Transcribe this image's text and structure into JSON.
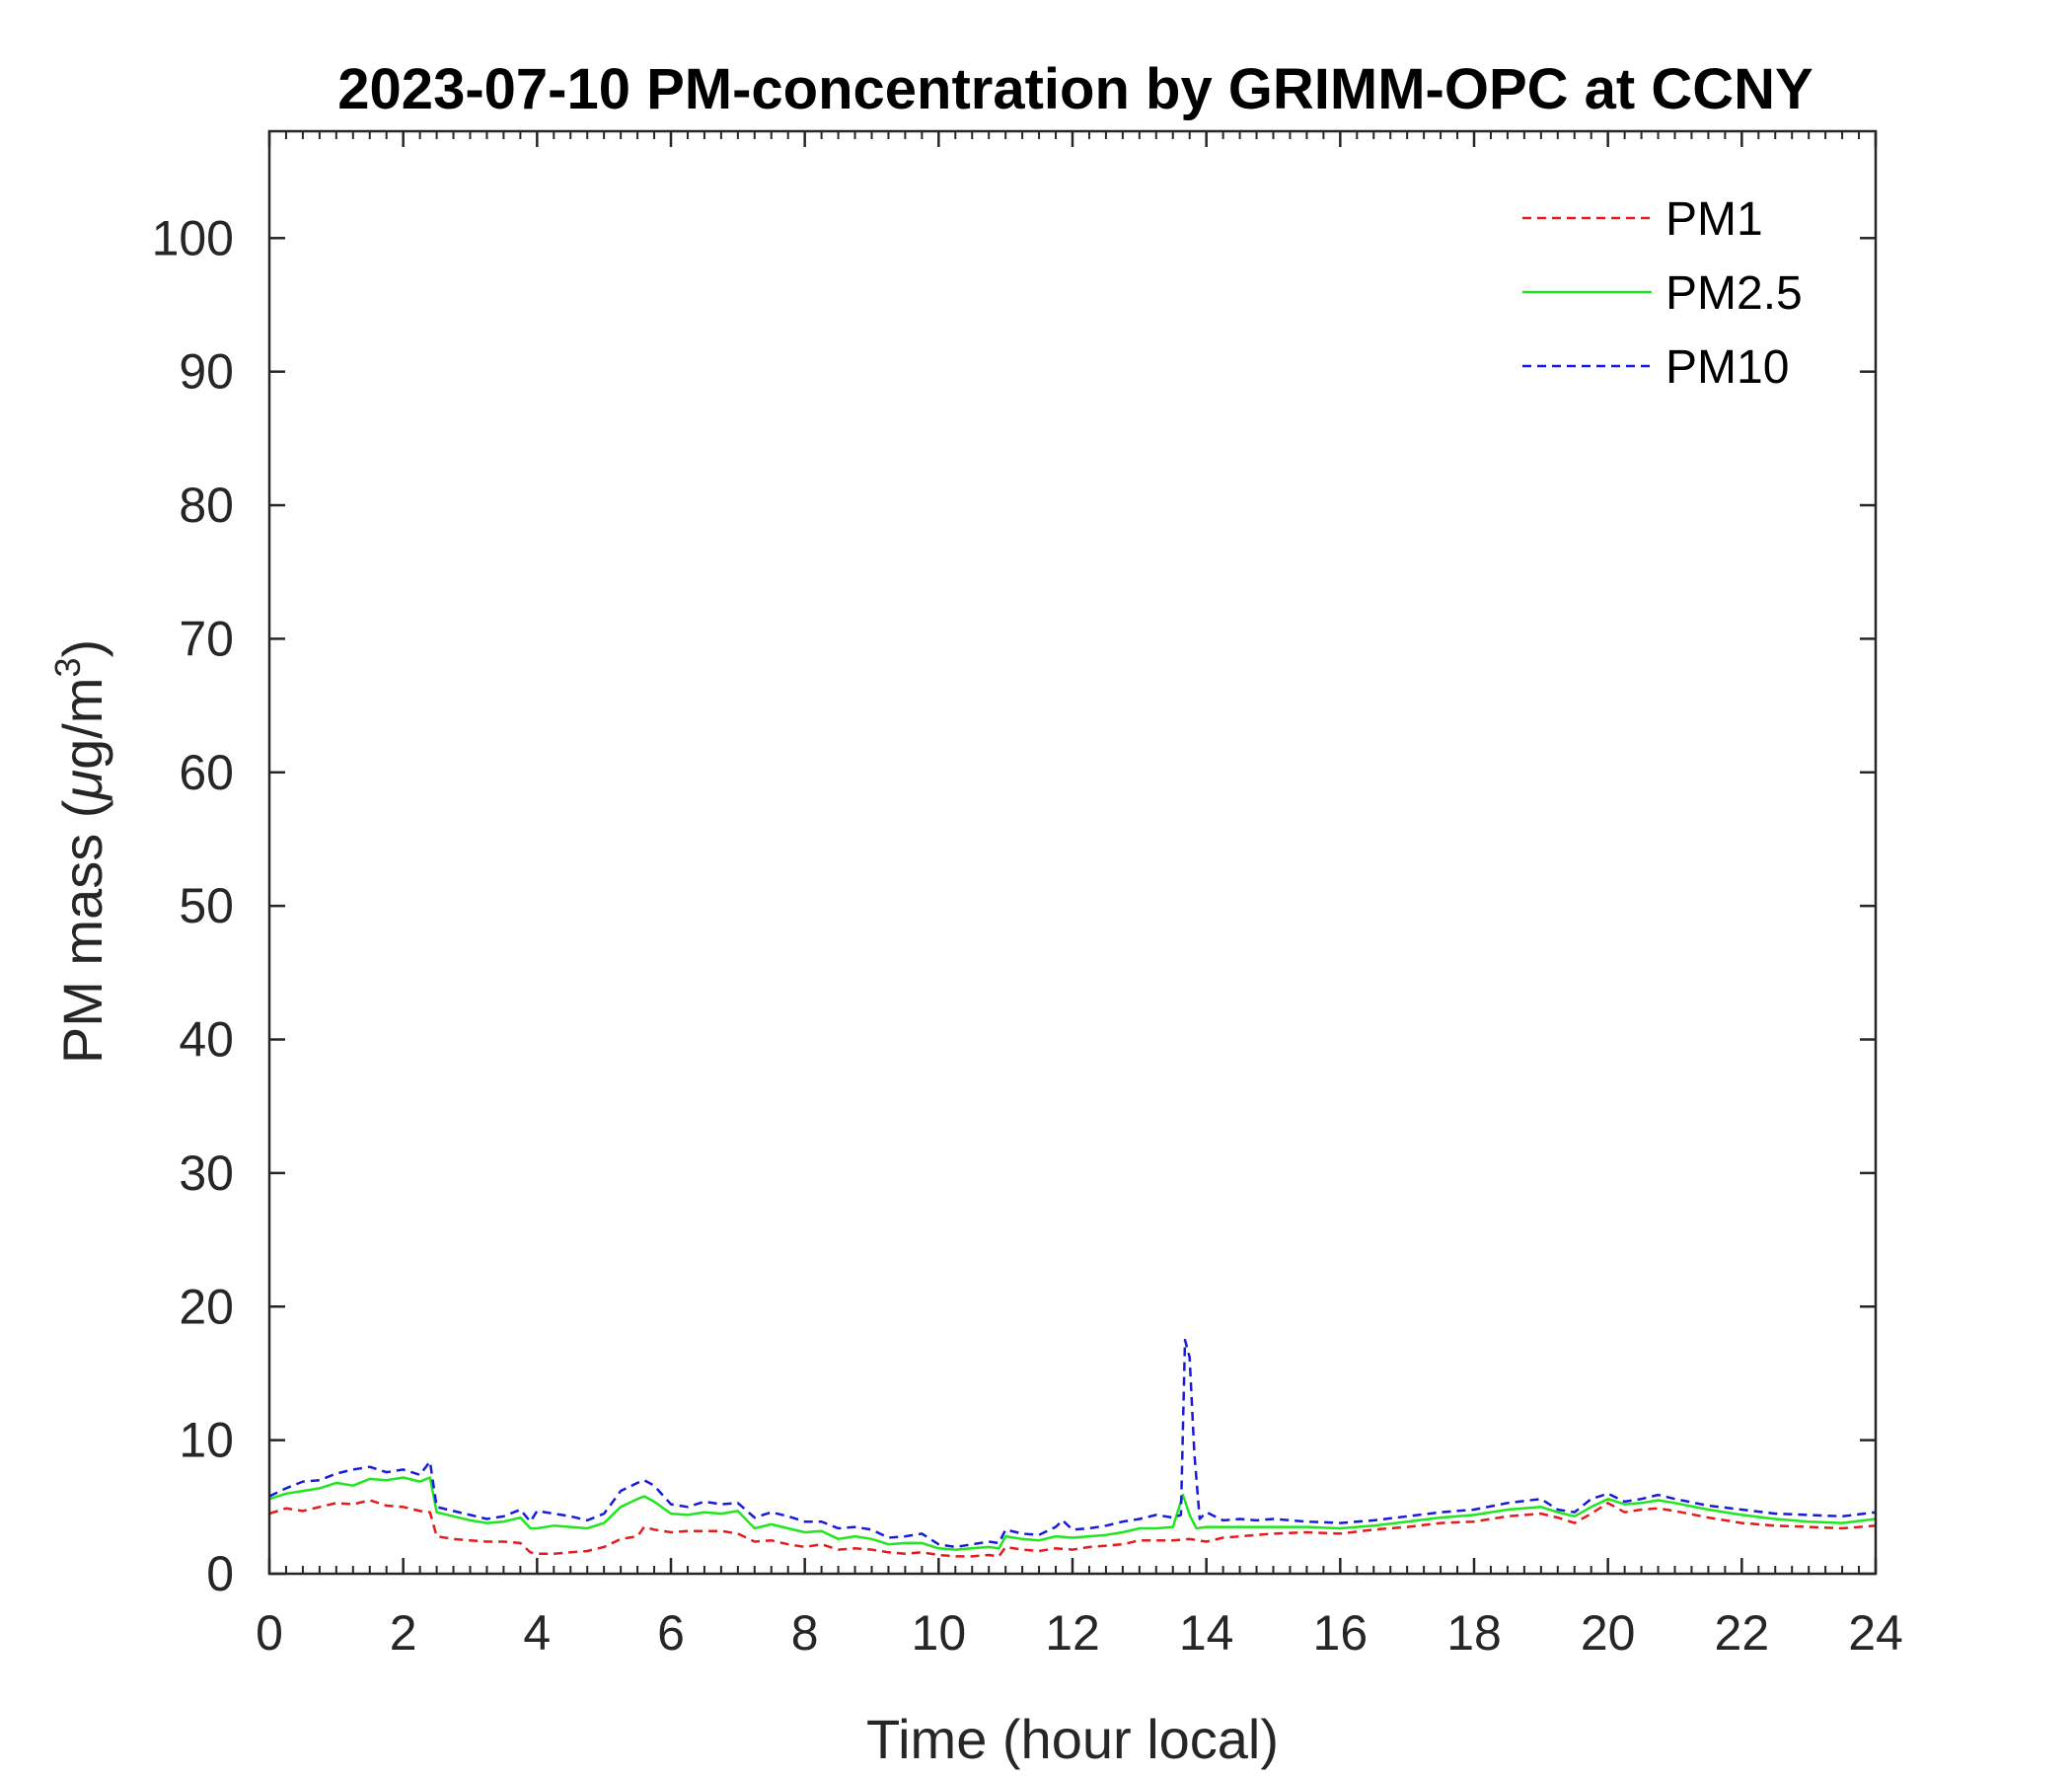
{
  "chart_data": {
    "type": "line",
    "title": "2023-07-10 PM-concentration by GRIMM-OPC at CCNY",
    "xlabel": "Time (hour local)",
    "ylabel_prefix": "PM mass (",
    "ylabel_mu": "μ",
    "ylabel_unit": "g/m",
    "ylabel_sup": "3",
    "ylabel_suffix": ")",
    "xlim": [
      0,
      24
    ],
    "ylim": [
      0,
      108
    ],
    "xticks": [
      "0",
      "2",
      "4",
      "6",
      "8",
      "10",
      "12",
      "14",
      "16",
      "18",
      "20",
      "22",
      "24"
    ],
    "yticks": [
      "0",
      "10",
      "20",
      "30",
      "40",
      "50",
      "60",
      "70",
      "80",
      "90",
      "100"
    ],
    "grid": false,
    "legend_position": "top-right",
    "series": [
      {
        "name": "PM1",
        "color": "#e41a1c",
        "dash": "dashed",
        "x": [
          0,
          0.25,
          0.5,
          0.75,
          1.0,
          1.25,
          1.5,
          1.75,
          2.0,
          2.25,
          2.4,
          2.5,
          2.75,
          3.0,
          3.25,
          3.5,
          3.75,
          3.9,
          4.0,
          4.25,
          4.5,
          4.75,
          5.0,
          5.25,
          5.5,
          5.6,
          5.75,
          6.0,
          6.25,
          6.5,
          6.75,
          7.0,
          7.25,
          7.5,
          7.75,
          8.0,
          8.25,
          8.5,
          8.75,
          9.0,
          9.25,
          9.5,
          9.75,
          10.0,
          10.25,
          10.5,
          10.75,
          10.9,
          11.0,
          11.25,
          11.5,
          11.75,
          12.0,
          12.25,
          12.5,
          12.75,
          13.0,
          13.25,
          13.5,
          13.75,
          14.0,
          14.25,
          14.5,
          14.75,
          15.0,
          15.5,
          16.0,
          16.5,
          17.0,
          17.5,
          18.0,
          18.5,
          19.0,
          19.25,
          19.5,
          19.75,
          20.0,
          20.25,
          20.5,
          20.75,
          21.0,
          21.5,
          22.0,
          22.5,
          23.0,
          23.5,
          24.0
        ],
        "y": [
          4.5,
          4.9,
          4.7,
          5.0,
          5.3,
          5.2,
          5.5,
          5.1,
          5.0,
          4.7,
          4.6,
          2.8,
          2.6,
          2.5,
          2.4,
          2.4,
          2.3,
          1.6,
          1.5,
          1.5,
          1.6,
          1.7,
          2.0,
          2.6,
          2.8,
          3.5,
          3.3,
          3.1,
          3.2,
          3.2,
          3.2,
          3.0,
          2.4,
          2.5,
          2.2,
          2.0,
          2.2,
          1.8,
          1.9,
          1.8,
          1.6,
          1.5,
          1.6,
          1.4,
          1.3,
          1.3,
          1.4,
          1.3,
          2.0,
          1.8,
          1.7,
          1.9,
          1.8,
          2.0,
          2.1,
          2.2,
          2.5,
          2.5,
          2.5,
          2.6,
          2.4,
          2.7,
          2.8,
          2.9,
          3.0,
          3.1,
          3.0,
          3.3,
          3.5,
          3.8,
          3.9,
          4.3,
          4.5,
          4.2,
          3.8,
          4.5,
          5.3,
          4.6,
          4.8,
          4.9,
          4.7,
          4.2,
          3.8,
          3.6,
          3.5,
          3.4,
          3.6
        ]
      },
      {
        "name": "PM2.5",
        "color": "#1fe61f",
        "dash": "solid",
        "x": [
          0,
          0.25,
          0.5,
          0.75,
          1.0,
          1.25,
          1.5,
          1.75,
          2.0,
          2.25,
          2.4,
          2.5,
          2.75,
          3.0,
          3.25,
          3.5,
          3.75,
          3.9,
          4.0,
          4.25,
          4.5,
          4.75,
          5.0,
          5.25,
          5.5,
          5.6,
          5.75,
          6.0,
          6.25,
          6.5,
          6.75,
          7.0,
          7.25,
          7.5,
          7.75,
          8.0,
          8.25,
          8.5,
          8.75,
          9.0,
          9.25,
          9.5,
          9.75,
          10.0,
          10.25,
          10.5,
          10.75,
          10.9,
          11.0,
          11.25,
          11.5,
          11.75,
          12.0,
          12.25,
          12.5,
          12.75,
          13.0,
          13.25,
          13.5,
          13.65,
          13.75,
          13.85,
          14.0,
          14.25,
          14.5,
          14.75,
          15.0,
          15.5,
          16.0,
          16.5,
          17.0,
          17.5,
          18.0,
          18.5,
          19.0,
          19.25,
          19.5,
          19.75,
          20.0,
          20.25,
          20.5,
          20.75,
          21.0,
          21.5,
          22.0,
          22.5,
          23.0,
          23.5,
          24.0
        ],
        "y": [
          5.6,
          6.0,
          6.2,
          6.4,
          6.8,
          6.6,
          7.1,
          7.0,
          7.2,
          6.9,
          7.2,
          4.6,
          4.3,
          4.0,
          3.8,
          3.9,
          4.2,
          3.4,
          3.4,
          3.6,
          3.5,
          3.4,
          3.8,
          5.0,
          5.6,
          5.8,
          5.4,
          4.5,
          4.4,
          4.6,
          4.5,
          4.7,
          3.4,
          3.7,
          3.4,
          3.1,
          3.2,
          2.6,
          2.8,
          2.6,
          2.2,
          2.3,
          2.3,
          1.9,
          1.8,
          1.9,
          2.0,
          1.9,
          2.8,
          2.6,
          2.5,
          2.8,
          2.7,
          2.8,
          2.9,
          3.1,
          3.4,
          3.4,
          3.5,
          5.9,
          4.4,
          3.4,
          3.5,
          3.5,
          3.5,
          3.5,
          3.5,
          3.5,
          3.4,
          3.6,
          3.9,
          4.2,
          4.4,
          4.8,
          5.0,
          4.6,
          4.3,
          5.0,
          5.6,
          5.2,
          5.3,
          5.5,
          5.3,
          4.8,
          4.4,
          4.1,
          3.9,
          3.8,
          4.1
        ]
      },
      {
        "name": "PM10",
        "color": "#1a1adb",
        "dash": "dashed",
        "x": [
          0,
          0.25,
          0.5,
          0.75,
          1.0,
          1.25,
          1.5,
          1.75,
          2.0,
          2.25,
          2.4,
          2.5,
          2.75,
          3.0,
          3.25,
          3.5,
          3.75,
          3.9,
          4.0,
          4.25,
          4.5,
          4.75,
          5.0,
          5.25,
          5.5,
          5.6,
          5.75,
          6.0,
          6.25,
          6.5,
          6.75,
          7.0,
          7.25,
          7.5,
          7.75,
          8.0,
          8.25,
          8.5,
          8.75,
          9.0,
          9.25,
          9.5,
          9.75,
          10.0,
          10.25,
          10.5,
          10.75,
          10.9,
          11.0,
          11.25,
          11.5,
          11.75,
          11.85,
          12.0,
          12.25,
          12.5,
          12.75,
          13.0,
          13.25,
          13.5,
          13.62,
          13.68,
          13.75,
          13.82,
          13.9,
          14.0,
          14.25,
          14.5,
          14.75,
          15.0,
          15.5,
          16.0,
          16.5,
          17.0,
          17.5,
          18.0,
          18.5,
          19.0,
          19.25,
          19.5,
          19.75,
          20.0,
          20.25,
          20.5,
          20.75,
          21.0,
          21.5,
          22.0,
          22.5,
          23.0,
          23.5,
          24.0
        ],
        "y": [
          5.8,
          6.4,
          6.9,
          7.0,
          7.5,
          7.8,
          8.0,
          7.6,
          7.8,
          7.4,
          8.4,
          5.0,
          4.7,
          4.4,
          4.1,
          4.3,
          4.8,
          3.9,
          4.7,
          4.5,
          4.3,
          4.0,
          4.5,
          6.2,
          6.8,
          7.0,
          6.6,
          5.2,
          5.0,
          5.4,
          5.2,
          5.3,
          4.2,
          4.6,
          4.3,
          3.9,
          3.9,
          3.4,
          3.5,
          3.3,
          2.7,
          2.8,
          3.0,
          2.2,
          2.0,
          2.2,
          2.4,
          2.3,
          3.3,
          3.0,
          2.9,
          3.5,
          4.0,
          3.3,
          3.4,
          3.6,
          3.9,
          4.1,
          4.4,
          4.2,
          4.4,
          17.5,
          16.2,
          9.0,
          4.1,
          4.6,
          4.0,
          4.1,
          4.0,
          4.1,
          3.9,
          3.8,
          4.0,
          4.3,
          4.6,
          4.8,
          5.3,
          5.6,
          4.8,
          4.6,
          5.6,
          6.0,
          5.4,
          5.6,
          5.9,
          5.6,
          5.1,
          4.8,
          4.5,
          4.4,
          4.3,
          4.6
        ]
      }
    ]
  }
}
